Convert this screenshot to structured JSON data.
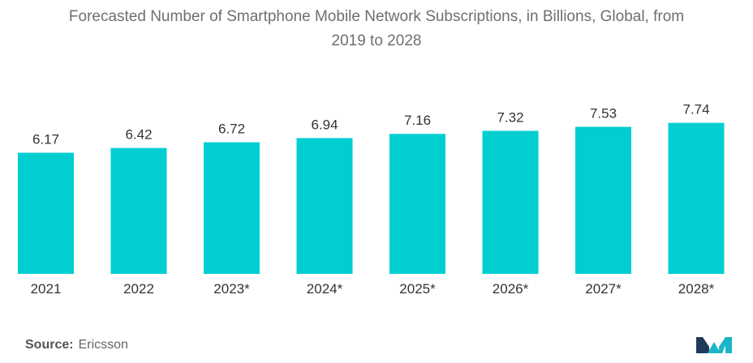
{
  "chart_data": {
    "type": "bar",
    "title_line1": "Forecasted Number of Smartphone Mobile Network Subscriptions, in Billions, Global, from",
    "title_line2": "2019 to 2028",
    "categories": [
      "2021",
      "2022",
      "2023*",
      "2024*",
      "2025*",
      "2026*",
      "2027*",
      "2028*"
    ],
    "values": [
      6.17,
      6.42,
      6.72,
      6.94,
      7.16,
      7.32,
      7.53,
      7.74
    ],
    "value_labels": [
      "6.17",
      "6.42",
      "6.72",
      "6.94",
      "7.16",
      "7.32",
      "7.53",
      "7.74"
    ],
    "xlabel": "",
    "ylabel": "",
    "grid": false,
    "legend": "none",
    "bar_color": "#00CED1"
  },
  "source": {
    "label": "Source:",
    "text": "Ericsson"
  },
  "colors": {
    "logo_dark": "#1f3b5a",
    "logo_teal": "#19b6c7"
  },
  "logo_icon": "mordor-logo-icon"
}
